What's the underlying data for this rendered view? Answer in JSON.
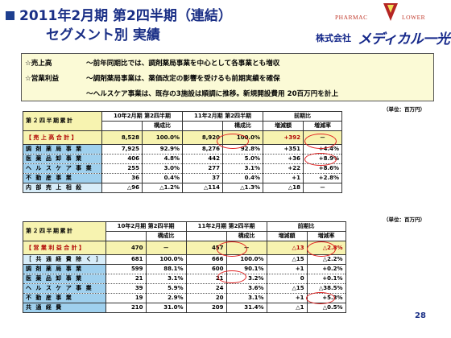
{
  "header": {
    "title_line1": "2011年2月期 第2四半期（連結）",
    "title_line2": "セグメント別 実績",
    "logo_pharmacy": "PHARMAC",
    "logo_lower": "LOWER",
    "company_prefix": "株式会社",
    "company_name": "メディカル一光"
  },
  "notes": {
    "line1_label": "☆売上高",
    "line1_text": "～前年同期比では、調剤薬局事業を中心として各事業とも増収",
    "line2_label": "☆営業利益",
    "line2_text": "～調剤薬局事業は、薬価改定の影響を受けるも前期実績を確保",
    "line3_text": "～ヘルスケア事業は、既存の3施設は順調に推移。新規開設費用 20百万円を計上"
  },
  "unit": "（単位：百万円）",
  "table1": {
    "corner": "第２四半期累計",
    "head_prev": "10年2月期 第2四半期",
    "head_curr": "11年2月期 第2四半期",
    "head_yoy": "前期比",
    "sub_ratio": "構成比",
    "sub_diff": "増減額",
    "sub_rate": "増減率",
    "rows": [
      {
        "label": "【 売 上 高 合 計 】",
        "prev": "8,528",
        "prev_r": "100.0%",
        "curr": "8,920",
        "curr_r": "100.0%",
        "diff": "+392",
        "rate": "－"
      },
      {
        "label": "調 剤 薬 局 事 業",
        "prev": "7,925",
        "prev_r": "92.9%",
        "curr": "8,276",
        "curr_r": "92.8%",
        "diff": "+351",
        "rate": "+4.4%"
      },
      {
        "label": "医 薬 品 卸 事 業",
        "prev": "406",
        "prev_r": "4.8%",
        "curr": "442",
        "curr_r": "5.0%",
        "diff": "+36",
        "rate": "+8.9%"
      },
      {
        "label": "ヘ ル ス ケ ア 事 業",
        "prev": "255",
        "prev_r": "3.0%",
        "curr": "277",
        "curr_r": "3.1%",
        "diff": "+22",
        "rate": "+8.6%"
      },
      {
        "label": "不 動 産 事 業",
        "prev": "36",
        "prev_r": "0.4%",
        "curr": "37",
        "curr_r": "0.4%",
        "diff": "+1",
        "rate": "+2.8%"
      },
      {
        "label": "内 部 売 上 相 殺",
        "prev": "△96",
        "prev_r": "△1.2%",
        "curr": "△114",
        "curr_r": "△1.3%",
        "diff": "△18",
        "rate": "－"
      }
    ]
  },
  "table2": {
    "corner": "第２四半期累計",
    "head_prev": "10年2月期 第2四半期",
    "head_curr": "11年2月期 第2四半期",
    "head_yoy": "前期比",
    "sub_ratio": "構成比",
    "sub_diff": "増減額",
    "sub_rate": "増減率",
    "rows": [
      {
        "label": "【 営 業 利 益 合 計 】",
        "prev": "470",
        "prev_r": "－",
        "curr": "457",
        "curr_r": "－",
        "diff": "△13",
        "rate": "△2.8%"
      },
      {
        "label": "［ 共 通 経 費 除 く ］",
        "prev": "681",
        "prev_r": "100.0%",
        "curr": "666",
        "curr_r": "100.0%",
        "diff": "△15",
        "rate": "△2.2%"
      },
      {
        "label": "調 剤 薬 局 事 業",
        "prev": "599",
        "prev_r": "88.1%",
        "curr": "600",
        "curr_r": "90.1%",
        "diff": "+1",
        "rate": "+0.2%"
      },
      {
        "label": "医 薬 品 卸 事 業",
        "prev": "21",
        "prev_r": "3.1%",
        "curr": "21",
        "curr_r": "3.2%",
        "diff": "0",
        "rate": "+0.1%"
      },
      {
        "label": "ヘ ル ス ケ ア 事 業",
        "prev": "39",
        "prev_r": "5.9%",
        "curr": "24",
        "curr_r": "3.6%",
        "diff": "△15",
        "rate": "△38.5%"
      },
      {
        "label": "不 動 産 事 業",
        "prev": "19",
        "prev_r": "2.9%",
        "curr": "20",
        "curr_r": "3.1%",
        "diff": "+1",
        "rate": "+5.3%"
      },
      {
        "label": "共 通 経 費",
        "prev": "210",
        "prev_r": "31.0%",
        "curr": "209",
        "curr_r": "31.4%",
        "diff": "△1",
        "rate": "△0.5%"
      }
    ]
  },
  "page_number": "28"
}
